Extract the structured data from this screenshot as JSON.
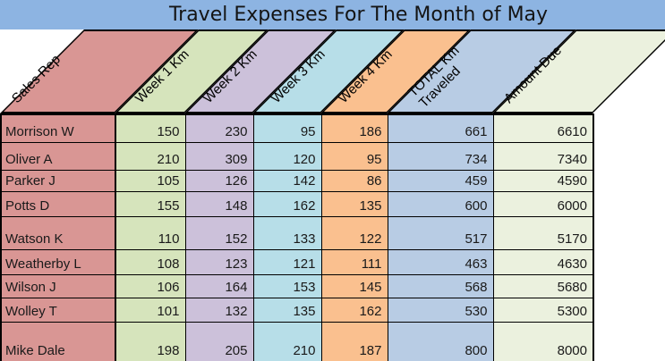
{
  "title": "Travel Expenses For The Month of May",
  "table": {
    "columns": [
      {
        "label": "Sales Rep",
        "color": "#D99694"
      },
      {
        "label": "Week 1 Km",
        "color": "#D6E4BC"
      },
      {
        "label": "Week 2 Km",
        "color": "#CCC1DA"
      },
      {
        "label": "Week 3 Km",
        "color": "#B7DEE8"
      },
      {
        "label": "Week 4 Km",
        "color": "#FAC08F"
      },
      {
        "label": "TOTAL Km\nTraveled",
        "color": "#B8CCE4"
      },
      {
        "label": "Amount Due",
        "color": "#EBF1DE"
      }
    ],
    "rows": [
      {
        "sales_rep": "Morrison W",
        "values": [
          "150",
          "230",
          "95",
          "186",
          "661",
          "6610"
        ]
      },
      {
        "sales_rep": "Oliver A",
        "values": [
          "210",
          "309",
          "120",
          "95",
          "734",
          "7340"
        ]
      },
      {
        "sales_rep": "Parker J",
        "values": [
          "105",
          "126",
          "142",
          "86",
          "459",
          "4590"
        ]
      },
      {
        "sales_rep": "Potts D",
        "values": [
          "155",
          "148",
          "162",
          "135",
          "600",
          "6000"
        ]
      },
      {
        "sales_rep": "Watson K",
        "values": [
          "110",
          "152",
          "133",
          "122",
          "517",
          "5170"
        ]
      },
      {
        "sales_rep": "Weatherby L",
        "values": [
          "108",
          "123",
          "121",
          "111",
          "463",
          "4630"
        ]
      },
      {
        "sales_rep": "Wilson J",
        "values": [
          "106",
          "164",
          "153",
          "145",
          "568",
          "5680"
        ]
      },
      {
        "sales_rep": "Wolley T",
        "values": [
          "101",
          "132",
          "135",
          "162",
          "530",
          "5300"
        ]
      },
      {
        "sales_rep": "Mike Dale",
        "values": [
          "198",
          "205",
          "210",
          "187",
          "800",
          "8000"
        ]
      }
    ]
  },
  "colors": {
    "title_bar": "#8DB4E2",
    "border": "#000000",
    "background": "#FFFFFF",
    "text": "#1A1A1A"
  }
}
